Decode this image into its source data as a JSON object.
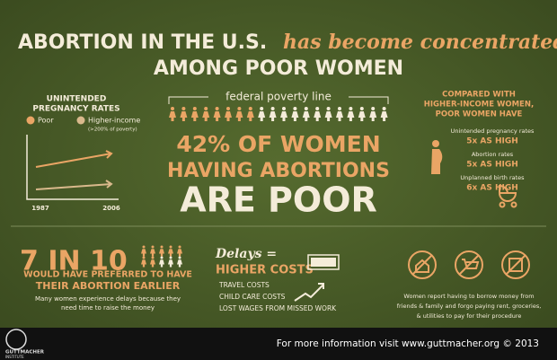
{
  "header": {
    "title_start": "ABORTION IN THE U.S.",
    "title_italic": "has become concentrated",
    "title_end": "AMONG POOR WOMEN"
  },
  "pregnancy_chart": {
    "title_lines": [
      "UNINTENDED",
      "PREGNANCY RATES"
    ],
    "legend": [
      "Poor",
      "Higher-income"
    ],
    "legend_note": "(>200% of poverty)",
    "x_labels": [
      "1987",
      "2006"
    ]
  },
  "center": {
    "poverty_line": "federal poverty line",
    "lines": [
      "42% OF WOMEN",
      "HAVING ABORTIONS",
      "ARE POOR"
    ]
  },
  "comparison": {
    "title_lines": [
      "COMPARED WITH",
      "HIGHER-INCOME WOMEN,",
      "POOR WOMEN HAVE"
    ],
    "items": [
      {
        "label": "Unintended pregnancy rates",
        "value": "5x AS HIGH"
      },
      {
        "label": "Abortion rates",
        "value": "5x AS HIGH"
      },
      {
        "label": "Unplanned birth rates",
        "value": "6x AS HIGH"
      }
    ]
  },
  "delay_preference": {
    "headline": "7 IN 10",
    "lines": [
      "WOULD HAVE PREFERRED TO HAVE",
      "THEIR ABORTION EARLIER"
    ],
    "note_lines": [
      "Many women experience delays because they",
      "need time to raise the money"
    ]
  },
  "costs": {
    "heading": "Delays =",
    "subheading": "HIGHER COSTS",
    "items": [
      "TRAVEL COSTS",
      "CHILD CARE COSTS",
      "LOST WAGES FROM MISSED WORK"
    ]
  },
  "sacrifices": {
    "lines": [
      "Women report having to borrow money from",
      "friends & family and forgo paying rent, groceries,",
      "& utilities to pay for their procedure"
    ]
  },
  "footer": {
    "text": "For more information visit www.guttmacher.org © 2013",
    "logo_lines": [
      "GUTTMACHER",
      "INSTITUTE"
    ]
  }
}
